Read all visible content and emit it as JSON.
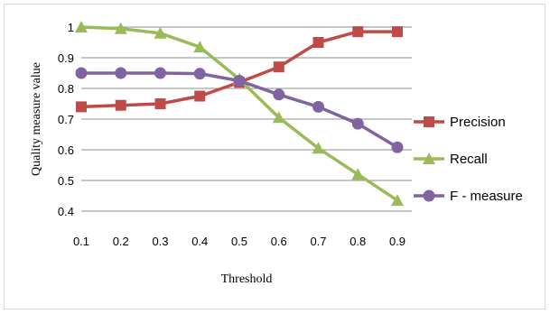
{
  "chart_data": {
    "type": "line",
    "title": "",
    "xlabel": "Threshold",
    "ylabel": "Quality measure value",
    "x": [
      "0.1",
      "0.2",
      "0.3",
      "0.4",
      "0.5",
      "0.6",
      "0.7",
      "0.8",
      "0.9"
    ],
    "yticks": [
      "0.4",
      "0.5",
      "0.6",
      "0.7",
      "0.8",
      "0.9",
      "1"
    ],
    "ylim": [
      0.4,
      1.0
    ],
    "grid": "horizontal",
    "legend": "right",
    "series": [
      {
        "name": "Precision",
        "marker": "square",
        "color": "#be4b48",
        "values": [
          0.74,
          0.745,
          0.75,
          0.775,
          0.82,
          0.87,
          0.95,
          0.985,
          0.985
        ]
      },
      {
        "name": "Recall",
        "marker": "triangle",
        "color": "#9bbb59",
        "values": [
          1.0,
          0.995,
          0.98,
          0.935,
          0.83,
          0.705,
          0.605,
          0.52,
          0.435
        ]
      },
      {
        "name": "F - measure",
        "marker": "circle",
        "color": "#8064a2",
        "values": [
          0.85,
          0.85,
          0.85,
          0.848,
          0.825,
          0.78,
          0.74,
          0.685,
          0.608
        ]
      }
    ]
  }
}
